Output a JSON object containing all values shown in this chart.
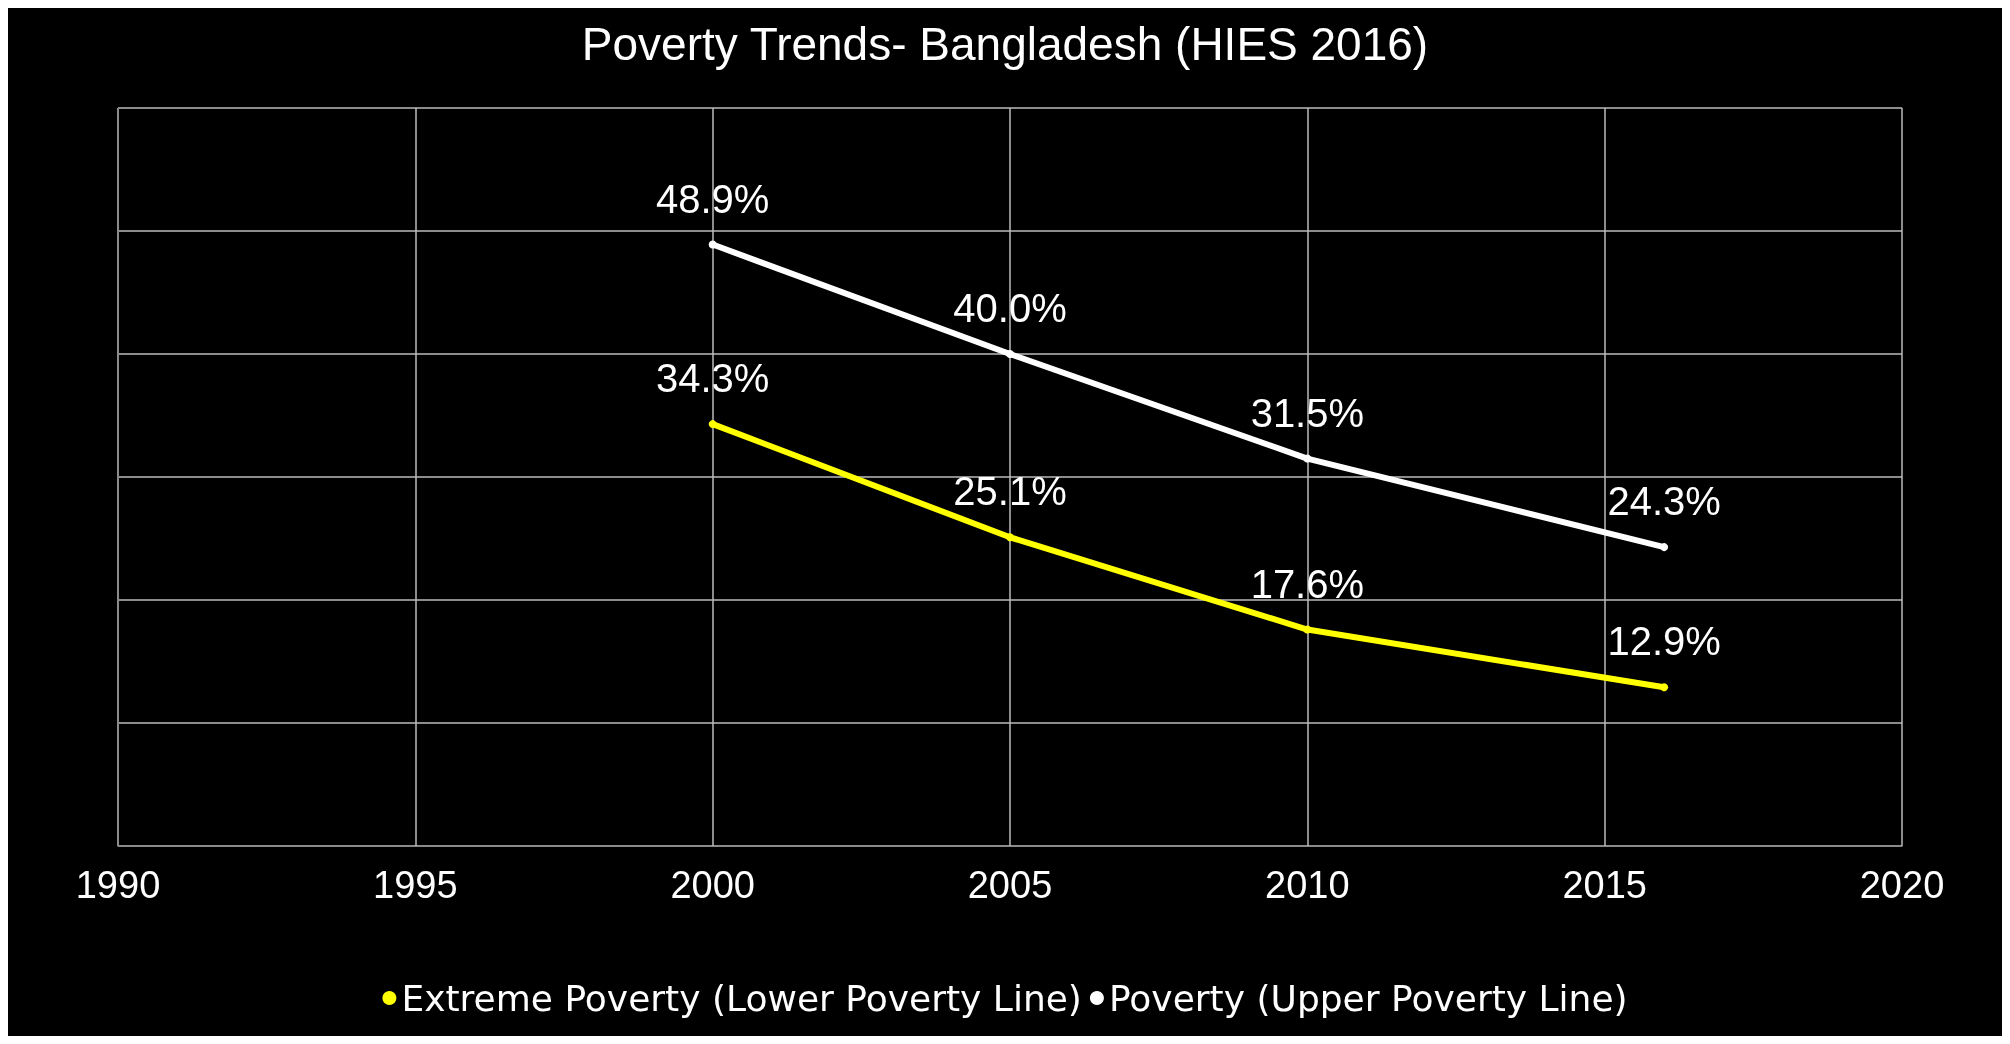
{
  "chart_data": {
    "type": "line",
    "title": "Poverty Trends- Bangladesh (HIES 2016)",
    "x": [
      2000,
      2005,
      2010,
      2016
    ],
    "series": [
      {
        "name": "Extreme Poverty (Lower Poverty Line)",
        "color": "#ffff00",
        "values": [
          34.3,
          25.1,
          17.6,
          12.9
        ],
        "value_labels": [
          "34.3%",
          "25.1%",
          "17.6%",
          "12.9%"
        ]
      },
      {
        "name": "Poverty (Upper Poverty Line)",
        "color": "#ffffff",
        "values": [
          48.9,
          40.0,
          31.5,
          24.3
        ],
        "value_labels": [
          "48.9%",
          "40.0%",
          "31.5%",
          "24.3%"
        ]
      }
    ],
    "xlim": [
      1990,
      2020
    ],
    "xticks": [
      1990,
      1995,
      2000,
      2005,
      2010,
      2015,
      2020
    ],
    "ylim": [
      0,
      60
    ],
    "yticks": [
      {
        "value": 0,
        "label": null
      },
      {
        "value": 10,
        "label": null
      },
      {
        "value": 20,
        "label": null
      },
      {
        "value": 30,
        "label": null
      },
      {
        "value": 40,
        "label": null
      },
      {
        "value": 50,
        "label": null
      },
      {
        "value": 60,
        "label": null
      }
    ],
    "tick_labels": "x",
    "grid": true,
    "legend": "bottom",
    "marker": "circle",
    "line_style": "solid"
  }
}
